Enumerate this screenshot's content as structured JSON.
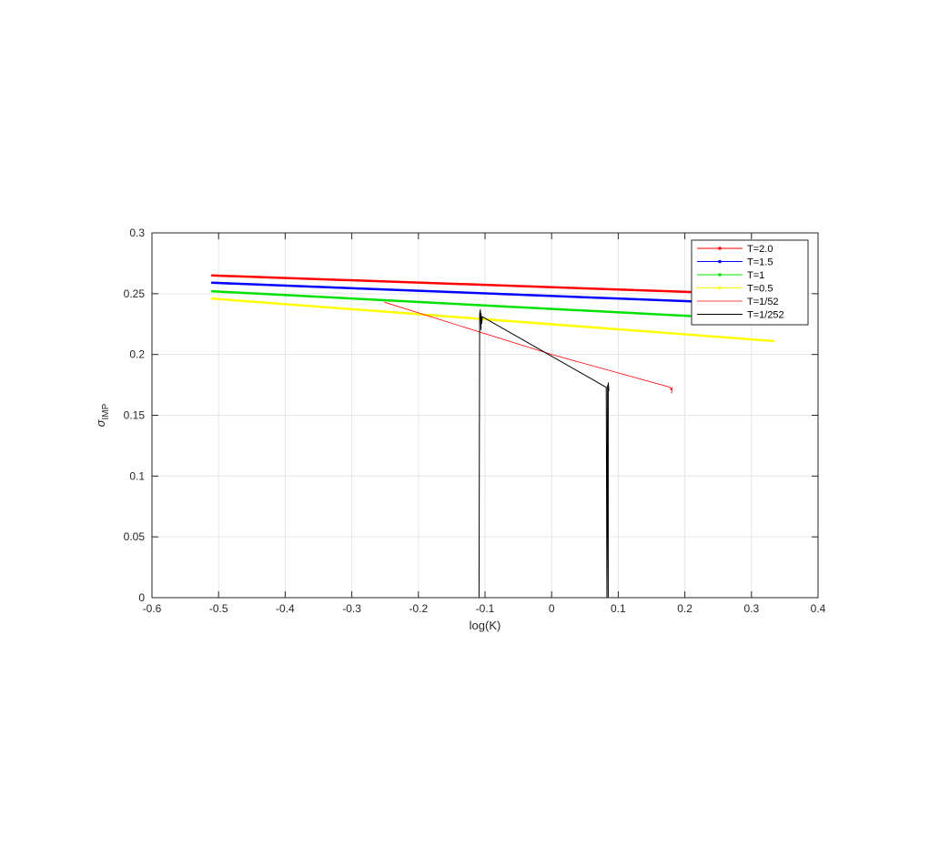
{
  "chart_data": {
    "type": "line",
    "title": "",
    "xlabel": "log(K)",
    "ylabel_symbol": "σ",
    "ylabel_subscript": "IMP",
    "xlim": [
      -0.6,
      0.4
    ],
    "ylim": [
      0,
      0.3
    ],
    "xticks": [
      -0.6,
      -0.5,
      -0.4,
      -0.3,
      -0.2,
      -0.1,
      0,
      0.1,
      0.2,
      0.3,
      0.4
    ],
    "xtick_labels": [
      "-0.6",
      "-0.5",
      "-0.4",
      "-0.3",
      "-0.2",
      "-0.1",
      "0",
      "0.1",
      "0.2",
      "0.3",
      "0.4"
    ],
    "yticks": [
      0,
      0.05,
      0.1,
      0.15,
      0.2,
      0.25,
      0.3
    ],
    "ytick_labels": [
      "0",
      "0.05",
      "0.1",
      "0.15",
      "0.2",
      "0.25",
      "0.3"
    ],
    "grid": true,
    "legend_position": "top-right",
    "series": [
      {
        "name": "T=2.0",
        "color": "#ff0000",
        "line_width": 2.5,
        "marker": "dot",
        "x": [
          -0.511,
          0.335
        ],
        "y": [
          0.265,
          0.249
        ]
      },
      {
        "name": "T=1.5",
        "color": "#0000ff",
        "line_width": 2.5,
        "marker": "dot",
        "x": [
          -0.511,
          0.335
        ],
        "y": [
          0.259,
          0.241
        ]
      },
      {
        "name": "T=1",
        "color": "#00e000",
        "line_width": 2.5,
        "marker": "dot",
        "x": [
          -0.511,
          0.335
        ],
        "y": [
          0.252,
          0.228
        ]
      },
      {
        "name": "T=0.5",
        "color": "#ffff00",
        "line_width": 2.5,
        "marker": "dot",
        "x": [
          -0.511,
          0.335
        ],
        "y": [
          0.246,
          0.211
        ]
      },
      {
        "name": "T=1/52",
        "color": "#ff0000",
        "line_width": 0.8,
        "marker": "none",
        "x": [
          -0.251,
          0.0,
          0.178,
          0.179,
          0.181,
          0.18
        ],
        "y": [
          0.243,
          0.2,
          0.173,
          0.171,
          0.173,
          0.168
        ]
      },
      {
        "name": "T=1/252",
        "color": "#000000",
        "line_width": 1,
        "marker": "none",
        "x": [
          -0.109,
          -0.108,
          -0.107,
          -0.106,
          -0.106,
          -0.105,
          -0.104,
          0.082,
          0.083,
          0.084,
          0.085,
          0.085,
          0.086
        ],
        "y": [
          0.0,
          0.233,
          0.237,
          0.22,
          0.234,
          0.225,
          0.231,
          0.173,
          0.0,
          0.175,
          0.0,
          0.177,
          0.17
        ]
      }
    ]
  }
}
